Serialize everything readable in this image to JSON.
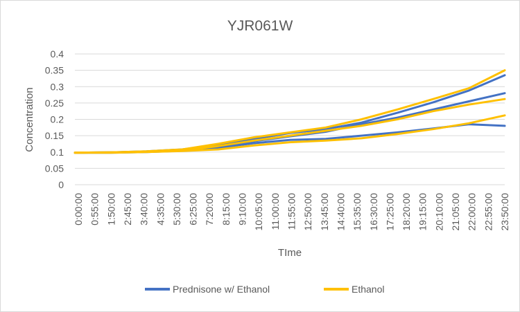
{
  "chart_data": {
    "type": "line",
    "title": "YJR061W",
    "xlabel": "TIme",
    "ylabel": "Concentration",
    "ylim": [
      0,
      0.4
    ],
    "yticks": [
      "0",
      "0.05",
      "0.1",
      "0.15",
      "0.2",
      "0.25",
      "0.3",
      "0.35",
      "0.4"
    ],
    "x_tick_labels": [
      "0:00:00",
      "0:55:00",
      "1:50:00",
      "2:45:00",
      "3:40:00",
      "4:35:00",
      "5:30:00",
      "6:25:00",
      "7:20:00",
      "8:15:00",
      "9:10:00",
      "10:05:00",
      "11:00:00",
      "11:55:00",
      "12:50:00",
      "13:45:00",
      "14:40:00",
      "15:35:00",
      "16:30:00",
      "17:25:00",
      "18:20:00",
      "19:15:00",
      "20:10:00",
      "21:05:00",
      "22:00:00",
      "22:55:00",
      "23:50:00"
    ],
    "x_hours": [
      0,
      2,
      4,
      6,
      8,
      10,
      12,
      14,
      16,
      18,
      20,
      22,
      24
    ],
    "grid": "horizontal",
    "legend_position": "bottom",
    "series": [
      {
        "name": "Prednisone w/ Ethanol",
        "color": "#4472c4",
        "lines": [
          [
            0.098,
            0.099,
            0.102,
            0.108,
            0.122,
            0.14,
            0.158,
            0.17,
            0.19,
            0.22,
            0.252,
            0.288,
            0.335
          ],
          [
            0.098,
            0.099,
            0.101,
            0.106,
            0.118,
            0.133,
            0.148,
            0.162,
            0.185,
            0.205,
            0.23,
            0.255,
            0.28
          ],
          [
            0.098,
            0.098,
            0.1,
            0.104,
            0.113,
            0.127,
            0.137,
            0.14,
            0.15,
            0.16,
            0.172,
            0.185,
            0.18
          ]
        ]
      },
      {
        "name": "Ethanol",
        "color": "#ffc000",
        "lines": [
          [
            0.098,
            0.099,
            0.102,
            0.108,
            0.125,
            0.145,
            0.16,
            0.175,
            0.2,
            0.23,
            0.262,
            0.295,
            0.35
          ],
          [
            0.098,
            0.099,
            0.101,
            0.105,
            0.118,
            0.135,
            0.15,
            0.165,
            0.18,
            0.2,
            0.225,
            0.245,
            0.262
          ],
          [
            0.098,
            0.098,
            0.1,
            0.103,
            0.108,
            0.12,
            0.13,
            0.135,
            0.142,
            0.155,
            0.17,
            0.188,
            0.212
          ]
        ]
      }
    ]
  }
}
